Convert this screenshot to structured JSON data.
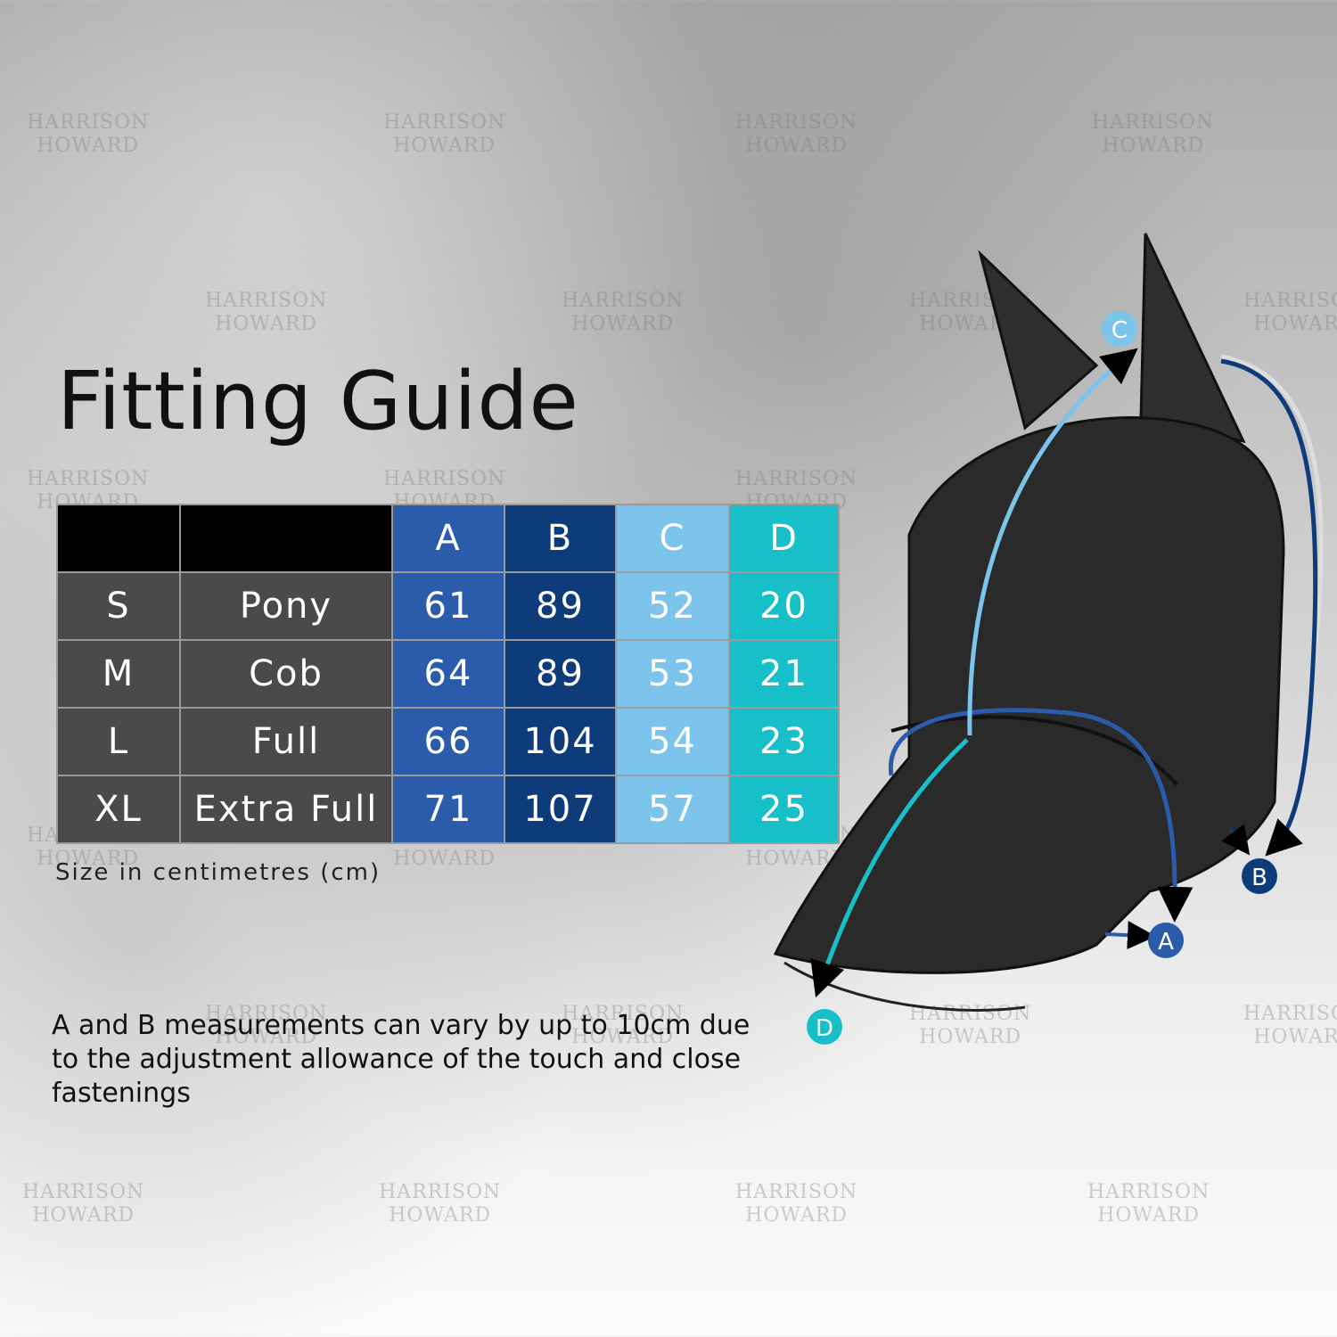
{
  "title": "Fitting Guide",
  "table": {
    "headers": [
      "",
      "",
      "A",
      "B",
      "C",
      "D"
    ],
    "rows": [
      {
        "size": "S",
        "name": "Pony",
        "A": "61",
        "B": "89",
        "C": "52",
        "D": "20"
      },
      {
        "size": "M",
        "name": "Cob",
        "A": "64",
        "B": "89",
        "C": "53",
        "D": "21"
      },
      {
        "size": "L",
        "name": "Full",
        "A": "66",
        "B": "104",
        "C": "54",
        "D": "23"
      },
      {
        "size": "XL",
        "name": "Extra Full",
        "A": "71",
        "B": "107",
        "C": "57",
        "D": "25"
      }
    ]
  },
  "units_note": "Size in centimetres (cm)",
  "footnote": "A and B measurements can vary by up to 10cm due to the adjustment allowance of the touch and close fastenings",
  "diagram_labels": {
    "A": "A",
    "B": "B",
    "C": "C",
    "D": "D"
  },
  "watermark": "HARRISON HOWARD",
  "colors": {
    "A": "#2b5cab",
    "B": "#0e3b7a",
    "C": "#7dc4ec",
    "D": "#17bfc8"
  }
}
